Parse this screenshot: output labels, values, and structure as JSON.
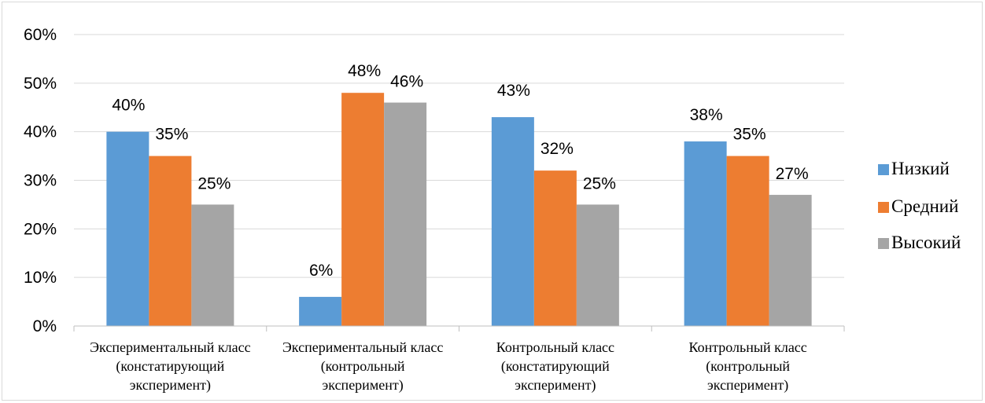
{
  "chart_data": {
    "type": "bar",
    "categories": [
      [
        "Экспериментальный класс",
        "(констатирующий",
        "эксперимент)"
      ],
      [
        "Экспериментальный класс",
        "(контрольный",
        "эксперимент)"
      ],
      [
        "Контрольный класс",
        "(констатирующий",
        "эксперимент)"
      ],
      [
        "Контрольный класс",
        "(контрольный",
        "эксперимент)"
      ]
    ],
    "series": [
      {
        "name": "Низкий",
        "color": "#5b9bd5",
        "values": [
          40,
          6,
          43,
          38
        ],
        "labels": [
          "40%",
          "6%",
          "43%",
          "38%"
        ]
      },
      {
        "name": "Средний",
        "color": "#ed7d31",
        "values": [
          35,
          48,
          32,
          35
        ],
        "labels": [
          "35%",
          "48%",
          "32%",
          "35%"
        ]
      },
      {
        "name": "Высокий",
        "color": "#a5a5a5",
        "values": [
          25,
          46,
          25,
          27
        ],
        "labels": [
          "25%",
          "46%",
          "25%",
          "27%"
        ]
      }
    ],
    "ylim": [
      0,
      60
    ],
    "yticks": [
      0,
      10,
      20,
      30,
      40,
      50,
      60
    ],
    "ytick_labels": [
      "0%",
      "10%",
      "20%",
      "30%",
      "40%",
      "50%",
      "60%"
    ],
    "grid": true,
    "legend_position": "right",
    "title": "",
    "xlabel": "",
    "ylabel": ""
  }
}
